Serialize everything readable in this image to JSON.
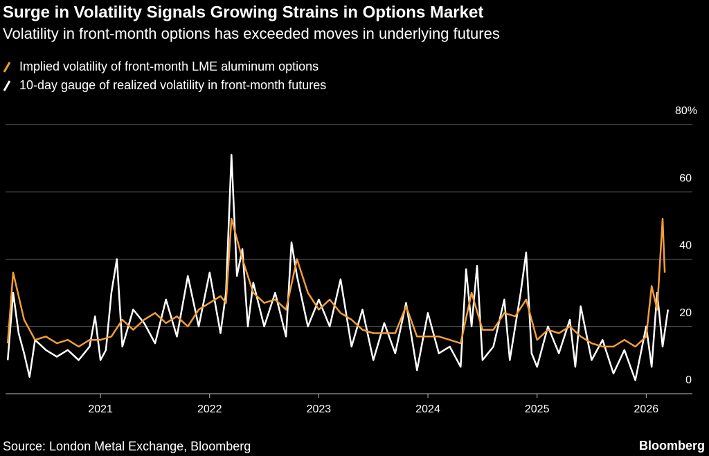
{
  "chart_data": {
    "type": "line",
    "title": "Surge in Volatility Signals Growing Strains in Options Market",
    "subtitle": "Volatility in front-month options has exceeded moves in underlying futures",
    "source": "Source: London Metal Exchange, Bloomberg",
    "brand": "Bloomberg",
    "xlim": [
      2020.13,
      2026.22
    ],
    "xticks": [
      2021,
      2022,
      2023,
      2024,
      2025,
      2026
    ],
    "ylim": [
      0,
      80
    ],
    "yticks": [
      0,
      20,
      40,
      60,
      {
        "value": 80,
        "label": "80%"
      }
    ],
    "grid": true,
    "series": [
      {
        "name": "Implied volatility of front-month LME aluminum options",
        "color": "#f29d38",
        "x": [
          2020.15,
          2020.2,
          2020.3,
          2020.4,
          2020.5,
          2020.6,
          2020.7,
          2020.8,
          2020.9,
          2021.0,
          2021.1,
          2021.2,
          2021.3,
          2021.4,
          2021.5,
          2021.6,
          2021.7,
          2021.8,
          2021.9,
          2022.0,
          2022.1,
          2022.15,
          2022.2,
          2022.3,
          2022.4,
          2022.5,
          2022.6,
          2022.7,
          2022.8,
          2022.9,
          2023.0,
          2023.1,
          2023.2,
          2023.3,
          2023.4,
          2023.5,
          2023.6,
          2023.7,
          2023.8,
          2023.9,
          2024.0,
          2024.1,
          2024.2,
          2024.3,
          2024.4,
          2024.5,
          2024.6,
          2024.7,
          2024.8,
          2024.9,
          2025.0,
          2025.1,
          2025.2,
          2025.3,
          2025.4,
          2025.5,
          2025.6,
          2025.7,
          2025.8,
          2025.9,
          2026.0,
          2026.05,
          2026.1,
          2026.15,
          2026.17
        ],
        "values": [
          15,
          36,
          22,
          16,
          17,
          15,
          16,
          14,
          16,
          16,
          17,
          22,
          19,
          22,
          24,
          21,
          23,
          20,
          25,
          27,
          29,
          27,
          52,
          40,
          30,
          27,
          28,
          25,
          40,
          30,
          25,
          28,
          24,
          22,
          19,
          18,
          18,
          18,
          26,
          17,
          17,
          17,
          16,
          15,
          30,
          19,
          19,
          24,
          23,
          28,
          16,
          19,
          18,
          20,
          17,
          15,
          14,
          14,
          16,
          14,
          17,
          32,
          25,
          52,
          36
        ]
      },
      {
        "name": "10-day gauge of realized volatility in front-month futures",
        "color": "#ffffff",
        "x": [
          2020.15,
          2020.2,
          2020.25,
          2020.3,
          2020.35,
          2020.4,
          2020.5,
          2020.6,
          2020.7,
          2020.8,
          2020.9,
          2020.95,
          2021.0,
          2021.05,
          2021.1,
          2021.15,
          2021.2,
          2021.3,
          2021.4,
          2021.5,
          2021.6,
          2021.7,
          2021.8,
          2021.9,
          2022.0,
          2022.1,
          2022.15,
          2022.2,
          2022.25,
          2022.3,
          2022.35,
          2022.4,
          2022.5,
          2022.6,
          2022.7,
          2022.75,
          2022.8,
          2022.9,
          2023.0,
          2023.1,
          2023.2,
          2023.3,
          2023.4,
          2023.5,
          2023.6,
          2023.7,
          2023.8,
          2023.9,
          2024.0,
          2024.1,
          2024.2,
          2024.3,
          2024.35,
          2024.4,
          2024.45,
          2024.5,
          2024.6,
          2024.7,
          2024.75,
          2024.85,
          2024.9,
          2024.95,
          2025.0,
          2025.1,
          2025.2,
          2025.3,
          2025.35,
          2025.4,
          2025.5,
          2025.6,
          2025.7,
          2025.8,
          2025.9,
          2026.0,
          2026.05,
          2026.1,
          2026.15,
          2026.2
        ],
        "values": [
          10,
          30,
          18,
          12,
          5,
          16,
          13,
          11,
          13,
          10,
          14,
          23,
          10,
          13,
          30,
          40,
          14,
          25,
          21,
          15,
          28,
          17,
          35,
          20,
          36,
          18,
          30,
          71,
          35,
          43,
          20,
          33,
          20,
          30,
          17,
          45,
          35,
          20,
          28,
          20,
          34,
          14,
          25,
          10,
          21,
          12,
          27,
          7,
          24,
          12,
          14,
          8,
          37,
          20,
          38,
          10,
          14,
          28,
          10,
          30,
          42,
          12,
          8,
          20,
          12,
          22,
          8,
          26,
          10,
          16,
          6,
          13,
          4,
          20,
          8,
          30,
          14,
          25
        ]
      }
    ]
  }
}
